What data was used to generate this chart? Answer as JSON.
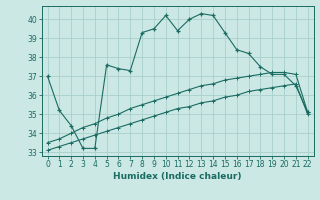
{
  "xlabel": "Humidex (Indice chaleur)",
  "ylabel": "",
  "bg_color": "#cce8e5",
  "grid_color": "#aad0cc",
  "line_color": "#1a6b62",
  "xlim": [
    -0.5,
    22.5
  ],
  "ylim": [
    32.8,
    40.7
  ],
  "yticks": [
    33,
    34,
    35,
    36,
    37,
    38,
    39,
    40
  ],
  "xticks": [
    0,
    1,
    2,
    3,
    4,
    5,
    6,
    7,
    8,
    9,
    10,
    11,
    12,
    13,
    14,
    15,
    16,
    17,
    18,
    19,
    20,
    21,
    22
  ],
  "line1_x": [
    0,
    1,
    2,
    3,
    4,
    5,
    6,
    7,
    8,
    9,
    10,
    11,
    12,
    13,
    14,
    15,
    16,
    17,
    18,
    19,
    20,
    21,
    22
  ],
  "line1_y": [
    37.0,
    35.2,
    34.4,
    33.2,
    33.2,
    37.6,
    37.4,
    37.3,
    39.3,
    39.5,
    40.2,
    39.4,
    40.0,
    40.3,
    40.2,
    39.3,
    38.4,
    38.2,
    37.5,
    37.1,
    37.1,
    36.5,
    35.1
  ],
  "line2_x": [
    0,
    1,
    2,
    3,
    4,
    5,
    6,
    7,
    8,
    9,
    10,
    11,
    12,
    13,
    14,
    15,
    16,
    17,
    18,
    19,
    20,
    21,
    22
  ],
  "line2_y": [
    33.5,
    33.7,
    34.0,
    34.3,
    34.5,
    34.8,
    35.0,
    35.3,
    35.5,
    35.7,
    35.9,
    36.1,
    36.3,
    36.5,
    36.6,
    36.8,
    36.9,
    37.0,
    37.1,
    37.2,
    37.2,
    37.1,
    35.1
  ],
  "line3_x": [
    0,
    1,
    2,
    3,
    4,
    5,
    6,
    7,
    8,
    9,
    10,
    11,
    12,
    13,
    14,
    15,
    16,
    17,
    18,
    19,
    20,
    21,
    22
  ],
  "line3_y": [
    33.1,
    33.3,
    33.5,
    33.7,
    33.9,
    34.1,
    34.3,
    34.5,
    34.7,
    34.9,
    35.1,
    35.3,
    35.4,
    35.6,
    35.7,
    35.9,
    36.0,
    36.2,
    36.3,
    36.4,
    36.5,
    36.6,
    35.0
  ],
  "tick_fontsize": 5.5,
  "xlabel_fontsize": 6.5
}
